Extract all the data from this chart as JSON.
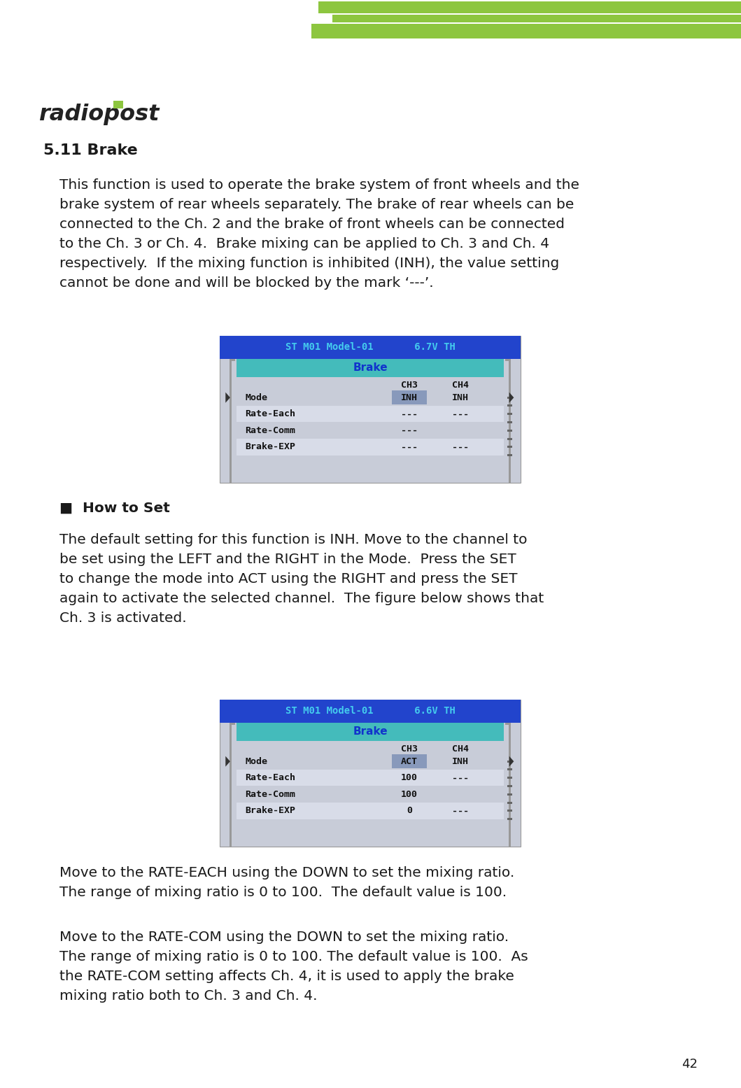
{
  "page_bg": "#ffffff",
  "stripe_color": "#8dc63f",
  "section_title": "5.11 Brake",
  "body1": "This function is used to operate the brake system of front wheels and the\nbrake system of rear wheels separately. The brake of rear wheels can be\nconnected to the Ch. 2 and the brake of front wheels can be connected\nto the Ch. 3 or Ch. 4.  Brake mixing can be applied to Ch. 3 and Ch. 4\nrespectively.  If the mixing function is inhibited (INH), the value setting\ncannot be done and will be blocked by the mark ‘---’.",
  "how_to_set": "■  How to Set",
  "body2": "The default setting for this function is INH. Move to the channel to\nbe set using the LEFT and the RIGHT in the Mode.  Press the SET\nto change the mode into ACT using the RIGHT and press the SET\nagain to activate the selected channel.  The figure below shows that\nCh. 3 is activated.",
  "body3": "Move to the RATE-EACH using the DOWN to set the mixing ratio.\nThe range of mixing ratio is 0 to 100.  The default value is 100.",
  "body4": "Move to the RATE-COM using the DOWN to set the mixing ratio.\nThe range of mixing ratio is 0 to 100. The default value is 100.  As\nthe RATE-COM setting affects Ch. 4, it is used to apply the brake\nmixing ratio both to Ch. 3 and Ch. 4.",
  "screen1_header": "ST M01 Model-01       6.7V TH",
  "screen1_rows": [
    {
      "label": "Mode",
      "ch3": "INH",
      "ch4": "INH",
      "ch3_hl": true
    },
    {
      "label": "Rate-Each",
      "ch3": "---",
      "ch4": "---",
      "ch3_hl": false
    },
    {
      "label": "Rate-Comm",
      "ch3": "---",
      "ch4": "",
      "ch3_hl": false
    },
    {
      "label": "Brake-EXP",
      "ch3": "---",
      "ch4": "---",
      "ch3_hl": false
    }
  ],
  "screen2_header": "ST M01 Model-01       6.6V TH",
  "screen2_rows": [
    {
      "label": "Mode",
      "ch3": "ACT",
      "ch4": "INH",
      "ch3_hl": true
    },
    {
      "label": "Rate-Each",
      "ch3": "100",
      "ch4": "---",
      "ch3_hl": false
    },
    {
      "label": "Rate-Comm",
      "ch3": "100",
      "ch4": "",
      "ch3_hl": false
    },
    {
      "label": "Brake-EXP",
      "ch3": "0",
      "ch4": "---",
      "ch3_hl": false
    }
  ],
  "scr_hdr_bg": "#2244cc",
  "scr_hdr_fg": "#44ccee",
  "scr_ttl_bg": "#44bbbb",
  "scr_ttl_fg": "#1133cc",
  "scr_outer": "#c8ccd8",
  "scr_row0": "#c8ccd8",
  "scr_row1": "#d8dce8",
  "scr_hl_bg": "#8899bb",
  "text_color": "#1a1a1a",
  "page_number": "42",
  "fs_body": 14.5,
  "fs_section": 16,
  "fs_howto": 14.5,
  "fs_screen_hdr": 10,
  "fs_screen_row": 9.5
}
